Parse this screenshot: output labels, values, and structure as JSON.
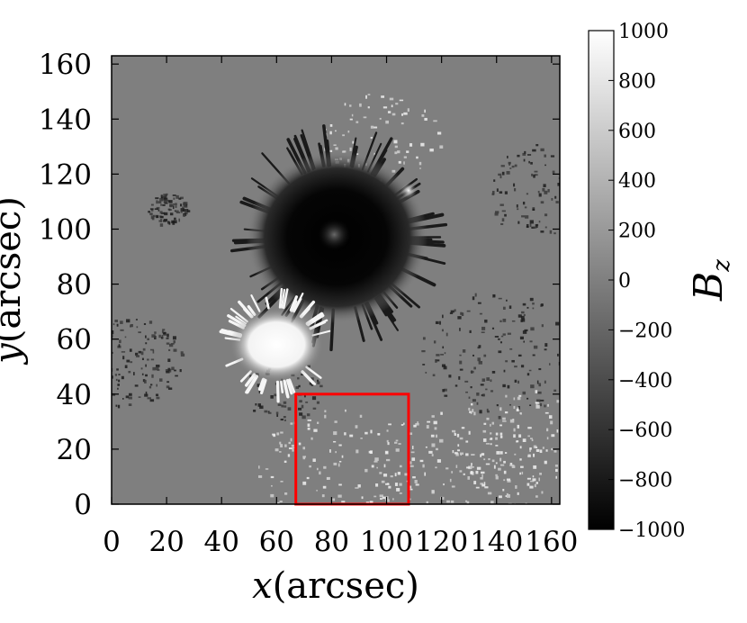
{
  "chart_data": {
    "type": "heatmap",
    "title": "",
    "xlabel_var": "x",
    "xlabel_unit": "(arcsec)",
    "ylabel_var": "y",
    "ylabel_unit": "(arcsec)",
    "xlim": [
      0,
      163
    ],
    "ylim": [
      0,
      163
    ],
    "x_ticks": [
      0,
      20,
      40,
      60,
      80,
      100,
      120,
      140,
      160
    ],
    "y_ticks": [
      0,
      20,
      40,
      60,
      80,
      100,
      120,
      140,
      160
    ],
    "colormap": "gray",
    "colorbar": {
      "label_var": "B",
      "label_sub": "z",
      "range": [
        -1000,
        1000
      ],
      "ticks": [
        -1000,
        -800,
        -600,
        -400,
        -200,
        0,
        200,
        400,
        600,
        800,
        1000
      ],
      "tick_labels": [
        "−1000",
        "−800",
        "−600",
        "−400",
        "−200",
        "0",
        "200",
        "400",
        "600",
        "800",
        "1000"
      ]
    },
    "features": [
      {
        "kind": "sunspot",
        "polarity": "negative",
        "x": 82,
        "y": 97,
        "radius": 33,
        "value": -1000
      },
      {
        "kind": "umbra-core",
        "polarity": "negative",
        "x": 81,
        "y": 98,
        "radius": 6,
        "value": -300
      },
      {
        "kind": "sunspot",
        "polarity": "positive",
        "x": 60,
        "y": 58,
        "radius": 17,
        "value": 1000
      },
      {
        "kind": "pore",
        "polarity": "positive",
        "x": 108,
        "y": 114,
        "radius": 3,
        "value": 800
      }
    ],
    "annotation_box": {
      "color": "#ff0000",
      "x": [
        67,
        108
      ],
      "y": [
        0,
        40
      ]
    }
  }
}
